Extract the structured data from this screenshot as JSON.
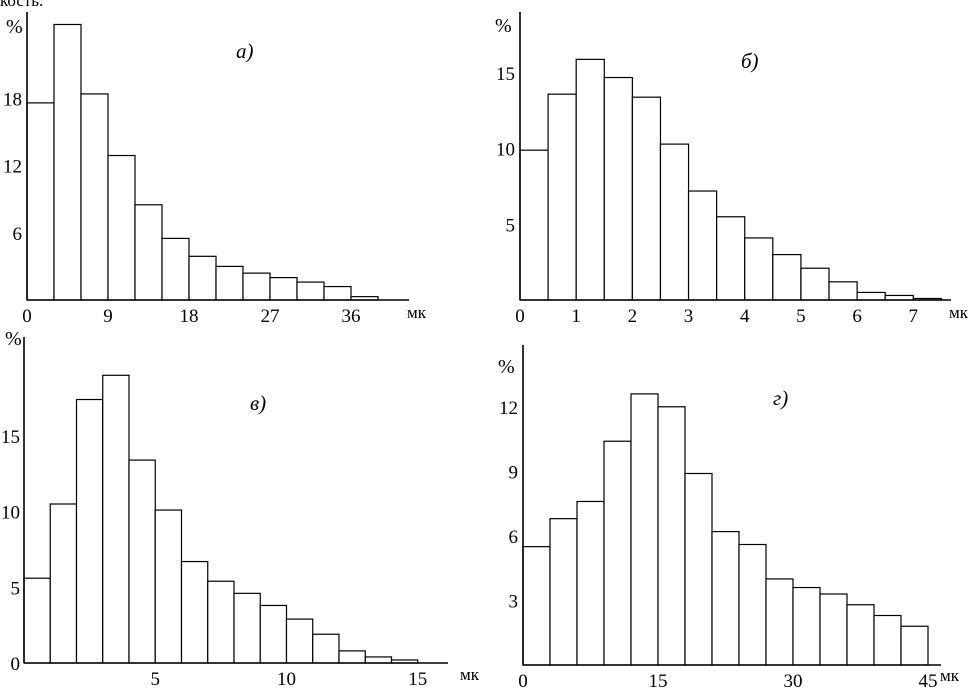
{
  "page": {
    "top_text": "кость."
  },
  "chart_data": [
    {
      "type": "bar",
      "panel_label": "а)",
      "y_unit_label": "%",
      "x_unit_label": "мк",
      "x_tick_labels": [
        "0",
        "9",
        "18",
        "27",
        "36"
      ],
      "x_ticks": [
        0,
        9,
        18,
        27,
        36
      ],
      "y_tick_labels": [
        "6",
        "12",
        "18"
      ],
      "y_ticks": [
        6,
        12,
        18
      ],
      "xlim": [
        0,
        42
      ],
      "ylim": [
        0,
        25
      ],
      "bin_width": 3,
      "bin_starts": [
        0,
        3,
        6,
        9,
        12,
        15,
        18,
        21,
        24,
        27,
        30,
        33,
        36
      ],
      "values": [
        17.6,
        24.6,
        18.4,
        12.9,
        8.5,
        5.5,
        3.9,
        3.0,
        2.4,
        2.0,
        1.6,
        1.2,
        0.3
      ]
    },
    {
      "type": "bar",
      "panel_label": "б)",
      "y_unit_label": "%",
      "x_unit_label": "мк",
      "x_tick_labels": [
        "0",
        "1",
        "2",
        "3",
        "4",
        "5",
        "6",
        "7"
      ],
      "x_ticks": [
        0,
        1,
        2,
        3,
        4,
        5,
        6,
        7
      ],
      "y_tick_labels": [
        "5",
        "10",
        "15"
      ],
      "y_ticks": [
        5,
        10,
        15
      ],
      "xlim": [
        0,
        7.6
      ],
      "ylim": [
        0,
        18.5
      ],
      "bin_width": 0.5,
      "bin_starts": [
        0,
        0.5,
        1,
        1.5,
        2,
        2.5,
        3,
        3.5,
        4,
        4.5,
        5,
        5.5,
        6,
        6.5,
        7
      ],
      "values": [
        9.9,
        13.6,
        15.9,
        14.7,
        13.4,
        10.3,
        7.2,
        5.5,
        4.1,
        3.0,
        2.1,
        1.2,
        0.5,
        0.3,
        0.1
      ]
    },
    {
      "type": "bar",
      "panel_label": "в)",
      "y_unit_label": "%",
      "x_unit_label": "мк",
      "x_tick_labels": [
        "5",
        "10",
        "15"
      ],
      "x_ticks": [
        5,
        10,
        15
      ],
      "y_tick_labels": [
        "0",
        "5",
        "10",
        "15"
      ],
      "y_ticks": [
        0,
        5,
        10,
        15
      ],
      "xlim": [
        0,
        16
      ],
      "ylim": [
        0,
        21
      ],
      "bin_width": 1,
      "bin_starts": [
        0,
        1,
        2,
        3,
        4,
        5,
        6,
        7,
        8,
        9,
        10,
        11,
        12,
        13,
        14
      ],
      "values": [
        5.6,
        10.5,
        17.4,
        19.0,
        13.4,
        10.1,
        6.7,
        5.4,
        4.6,
        3.8,
        2.9,
        1.9,
        0.8,
        0.4,
        0.2
      ]
    },
    {
      "type": "bar",
      "panel_label": "г)",
      "y_unit_label": "%",
      "x_unit_label": "мк",
      "x_tick_labels": [
        "0",
        "15",
        "30",
        "45"
      ],
      "x_ticks": [
        0,
        15,
        30,
        45
      ],
      "y_tick_labels": [
        "3",
        "6",
        "9",
        "12"
      ],
      "y_ticks": [
        3,
        6,
        9,
        12
      ],
      "xlim": [
        0,
        46
      ],
      "ylim": [
        0,
        14.5
      ],
      "bin_width": 3,
      "bin_starts": [
        0,
        3,
        6,
        9,
        12,
        15,
        18,
        21,
        24,
        27,
        30,
        33,
        36,
        39,
        42
      ],
      "values": [
        5.5,
        6.8,
        7.6,
        10.4,
        12.6,
        12.0,
        8.9,
        6.2,
        5.6,
        4.0,
        3.6,
        3.3,
        2.8,
        2.3,
        1.8
      ]
    }
  ]
}
